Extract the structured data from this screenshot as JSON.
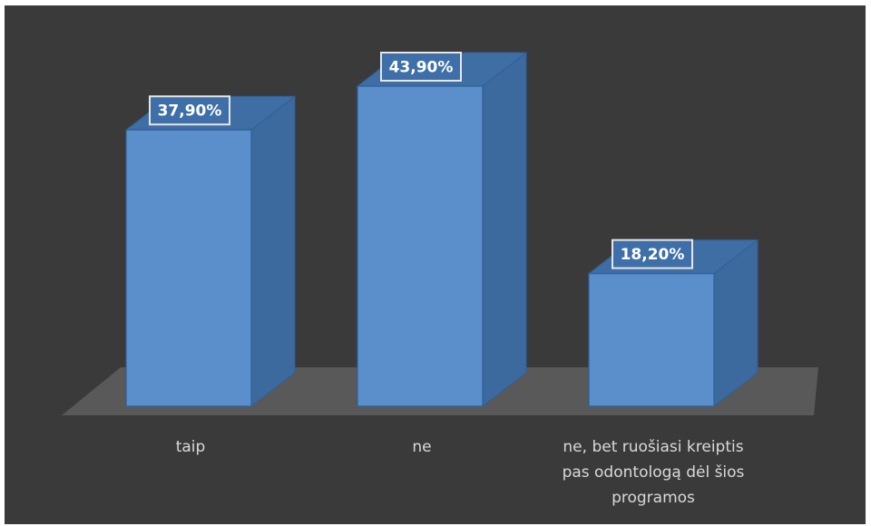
{
  "chart_data": {
    "type": "bar",
    "style": "3d-column",
    "categories": [
      "taip",
      "ne",
      "ne, bet ruošiasi kreiptis pas odontologą dėl šios programos"
    ],
    "category_label_lines": [
      [
        "taip"
      ],
      [
        "ne"
      ],
      [
        "ne, bet ruošiasi kreiptis",
        "pas odontologą dėl šios",
        "programos"
      ]
    ],
    "values": [
      37.9,
      43.9,
      18.2
    ],
    "data_labels": [
      "37,90%",
      "43,90%",
      "18,20%"
    ],
    "unit": "%",
    "ylim": [
      0,
      43.9
    ],
    "grid": false,
    "legend": "none",
    "colors": {
      "background": "#3a3a3a",
      "floor": "#595959",
      "bar_front": "#5a8fcb",
      "bar_side": "#3c6a9e",
      "bar_top": "#3e6ea3",
      "bar_edge": "#2f5f93",
      "label_box": "#3f6fa8",
      "label_border": "#e6e6e6",
      "label_text": "#ffffff",
      "category_text": "#d9d9d9"
    }
  }
}
